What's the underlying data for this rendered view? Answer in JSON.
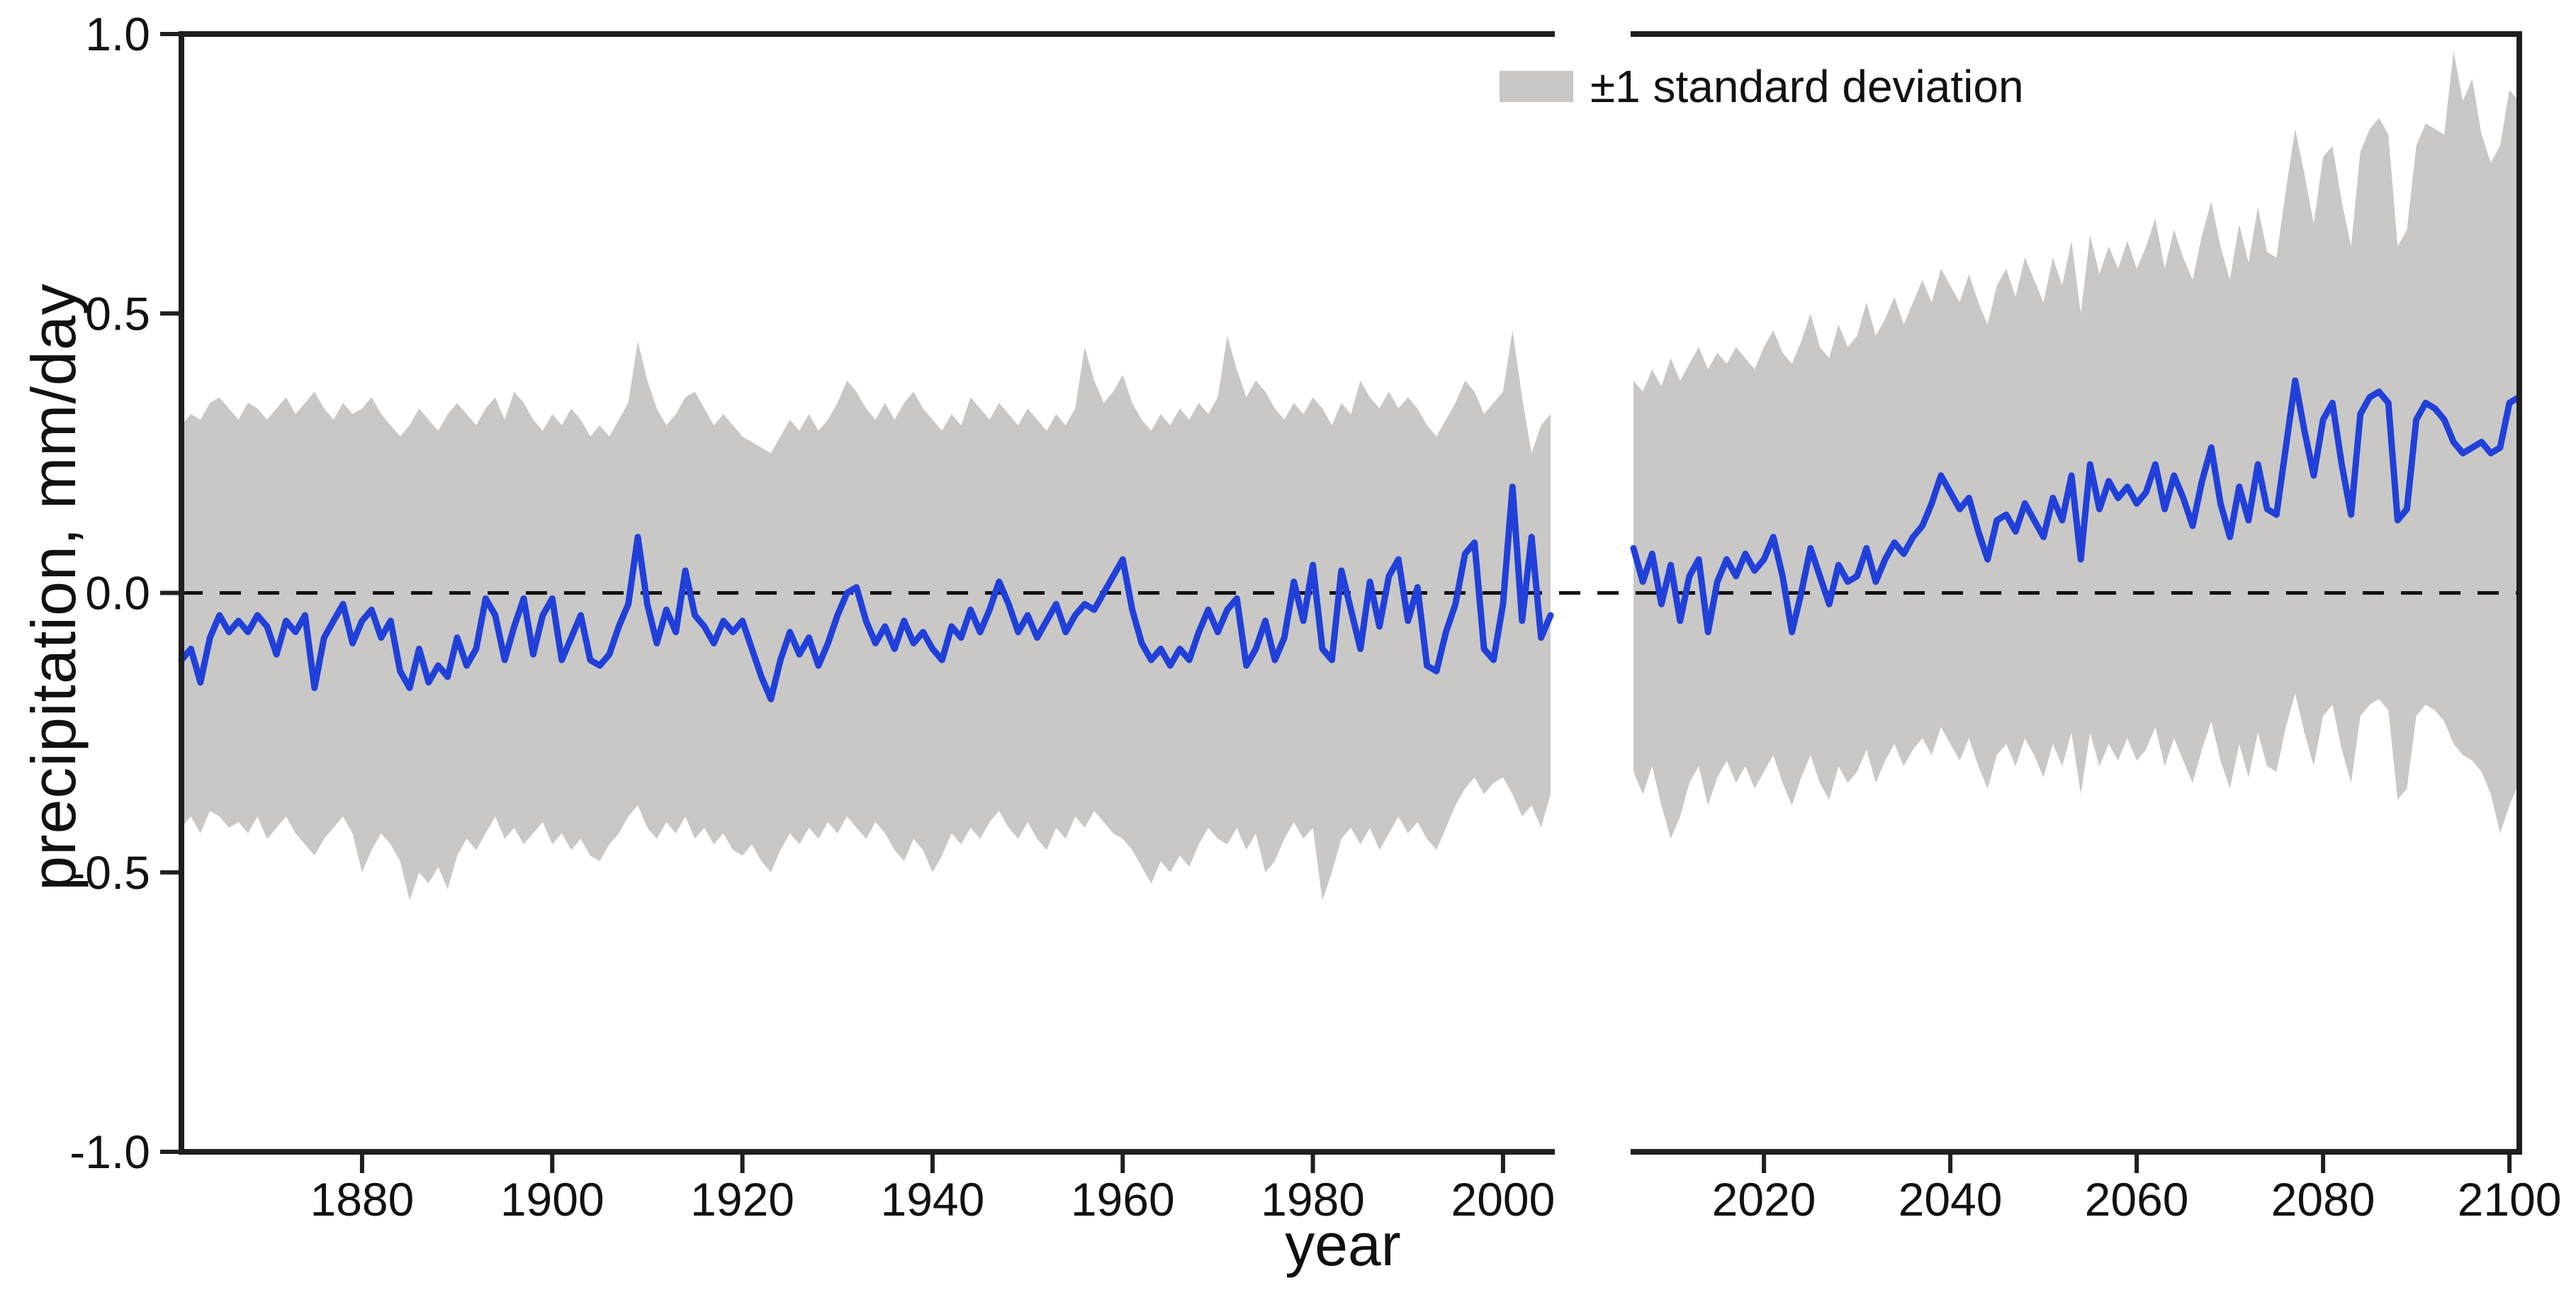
{
  "chart_data": {
    "type": "line",
    "title": "",
    "xlabel": "year",
    "ylabel": "precipitation, mm/day",
    "ylim": [
      -1.0,
      1.0
    ],
    "grid": false,
    "zero_line": true,
    "band_label": "±1 standard deviation",
    "legend_position": "top-right-of-left-panel",
    "layout": {
      "broken_x_axis": true,
      "panel_gap_years": "2005-2006"
    },
    "colors": {
      "mean_line": "#2140d9",
      "band": "#c9c8c6",
      "axis": "#1f1f1f",
      "zero_line": "#111111"
    },
    "y_ticks": {
      "values": [
        1.0,
        0.5,
        0.0,
        -0.5,
        -1.0
      ],
      "labels": [
        "1.0",
        "0.5",
        "0.0",
        "-0.5",
        "-1.0"
      ]
    },
    "panels": [
      {
        "name": "historical",
        "x_range": [
          1861,
          2005
        ],
        "x_ticks": [
          1880,
          1900,
          1920,
          1940,
          1960,
          1980,
          2000
        ],
        "year_start": 1861,
        "series": {
          "mean": [
            -0.12,
            -0.1,
            -0.16,
            -0.08,
            -0.04,
            -0.07,
            -0.05,
            -0.07,
            -0.04,
            -0.06,
            -0.11,
            -0.05,
            -0.07,
            -0.04,
            -0.17,
            -0.08,
            -0.05,
            -0.02,
            -0.09,
            -0.05,
            -0.03,
            -0.08,
            -0.05,
            -0.14,
            -0.17,
            -0.1,
            -0.16,
            -0.13,
            -0.15,
            -0.08,
            -0.13,
            -0.1,
            -0.01,
            -0.04,
            -0.12,
            -0.06,
            -0.01,
            -0.11,
            -0.04,
            -0.01,
            -0.12,
            -0.08,
            -0.04,
            -0.12,
            -0.13,
            -0.11,
            -0.06,
            -0.02,
            0.1,
            -0.02,
            -0.09,
            -0.03,
            -0.07,
            0.04,
            -0.04,
            -0.06,
            -0.09,
            -0.05,
            -0.07,
            -0.05,
            -0.1,
            -0.15,
            -0.19,
            -0.12,
            -0.07,
            -0.11,
            -0.08,
            -0.13,
            -0.09,
            -0.04,
            0.0,
            0.01,
            -0.05,
            -0.09,
            -0.06,
            -0.1,
            -0.05,
            -0.09,
            -0.07,
            -0.1,
            -0.12,
            -0.06,
            -0.08,
            -0.03,
            -0.07,
            -0.03,
            0.02,
            -0.02,
            -0.07,
            -0.04,
            -0.08,
            -0.05,
            -0.02,
            -0.07,
            -0.04,
            -0.02,
            -0.03,
            0.0,
            0.03,
            0.06,
            -0.03,
            -0.09,
            -0.12,
            -0.1,
            -0.13,
            -0.1,
            -0.12,
            -0.07,
            -0.03,
            -0.07,
            -0.03,
            -0.01,
            -0.13,
            -0.1,
            -0.05,
            -0.12,
            -0.08,
            0.02,
            -0.05,
            0.05,
            -0.1,
            -0.12,
            0.04,
            -0.03,
            -0.1,
            0.02,
            -0.06,
            0.03,
            0.06,
            -0.05,
            0.01,
            -0.13,
            -0.14,
            -0.07,
            -0.02,
            0.07,
            0.09,
            -0.1,
            -0.12,
            -0.02,
            0.19,
            -0.05,
            0.1,
            -0.08,
            -0.04
          ],
          "upper": [
            0.3,
            0.32,
            0.31,
            0.34,
            0.35,
            0.33,
            0.31,
            0.34,
            0.33,
            0.31,
            0.33,
            0.35,
            0.32,
            0.34,
            0.36,
            0.33,
            0.31,
            0.34,
            0.32,
            0.33,
            0.35,
            0.32,
            0.3,
            0.28,
            0.3,
            0.33,
            0.31,
            0.29,
            0.32,
            0.34,
            0.32,
            0.3,
            0.33,
            0.35,
            0.31,
            0.36,
            0.34,
            0.31,
            0.29,
            0.32,
            0.3,
            0.33,
            0.31,
            0.28,
            0.3,
            0.28,
            0.31,
            0.34,
            0.45,
            0.38,
            0.33,
            0.3,
            0.32,
            0.35,
            0.36,
            0.33,
            0.3,
            0.32,
            0.3,
            0.28,
            0.27,
            0.26,
            0.25,
            0.28,
            0.31,
            0.29,
            0.32,
            0.29,
            0.31,
            0.34,
            0.38,
            0.36,
            0.33,
            0.31,
            0.34,
            0.31,
            0.34,
            0.36,
            0.33,
            0.31,
            0.29,
            0.32,
            0.3,
            0.35,
            0.33,
            0.31,
            0.34,
            0.32,
            0.3,
            0.33,
            0.31,
            0.29,
            0.32,
            0.3,
            0.33,
            0.44,
            0.38,
            0.34,
            0.36,
            0.39,
            0.34,
            0.31,
            0.29,
            0.32,
            0.3,
            0.33,
            0.31,
            0.34,
            0.32,
            0.35,
            0.46,
            0.4,
            0.35,
            0.38,
            0.36,
            0.33,
            0.31,
            0.34,
            0.32,
            0.35,
            0.33,
            0.3,
            0.34,
            0.32,
            0.38,
            0.35,
            0.33,
            0.36,
            0.33,
            0.35,
            0.33,
            0.3,
            0.28,
            0.31,
            0.34,
            0.38,
            0.36,
            0.32,
            0.34,
            0.36,
            0.47,
            0.35,
            0.25,
            0.3,
            0.32
          ],
          "lower": [
            -0.42,
            -0.4,
            -0.43,
            -0.39,
            -0.4,
            -0.42,
            -0.41,
            -0.43,
            -0.4,
            -0.44,
            -0.42,
            -0.4,
            -0.43,
            -0.45,
            -0.47,
            -0.44,
            -0.42,
            -0.4,
            -0.43,
            -0.5,
            -0.46,
            -0.43,
            -0.45,
            -0.48,
            -0.55,
            -0.5,
            -0.52,
            -0.49,
            -0.53,
            -0.47,
            -0.44,
            -0.46,
            -0.43,
            -0.4,
            -0.44,
            -0.42,
            -0.45,
            -0.43,
            -0.41,
            -0.45,
            -0.43,
            -0.46,
            -0.44,
            -0.47,
            -0.48,
            -0.45,
            -0.43,
            -0.4,
            -0.38,
            -0.42,
            -0.44,
            -0.41,
            -0.43,
            -0.4,
            -0.44,
            -0.42,
            -0.45,
            -0.43,
            -0.46,
            -0.47,
            -0.45,
            -0.48,
            -0.5,
            -0.46,
            -0.43,
            -0.45,
            -0.42,
            -0.44,
            -0.41,
            -0.43,
            -0.4,
            -0.42,
            -0.44,
            -0.41,
            -0.43,
            -0.46,
            -0.48,
            -0.44,
            -0.46,
            -0.5,
            -0.47,
            -0.43,
            -0.45,
            -0.42,
            -0.44,
            -0.41,
            -0.39,
            -0.42,
            -0.44,
            -0.41,
            -0.44,
            -0.46,
            -0.42,
            -0.44,
            -0.4,
            -0.42,
            -0.39,
            -0.41,
            -0.43,
            -0.44,
            -0.46,
            -0.49,
            -0.52,
            -0.48,
            -0.5,
            -0.47,
            -0.49,
            -0.45,
            -0.42,
            -0.44,
            -0.45,
            -0.42,
            -0.46,
            -0.43,
            -0.5,
            -0.48,
            -0.44,
            -0.41,
            -0.44,
            -0.42,
            -0.55,
            -0.5,
            -0.44,
            -0.42,
            -0.45,
            -0.42,
            -0.46,
            -0.43,
            -0.4,
            -0.43,
            -0.41,
            -0.44,
            -0.46,
            -0.42,
            -0.38,
            -0.35,
            -0.33,
            -0.36,
            -0.34,
            -0.33,
            -0.36,
            -0.4,
            -0.38,
            -0.42,
            -0.36
          ]
        }
      },
      {
        "name": "projection",
        "x_range": [
          2006,
          2101
        ],
        "x_ticks": [
          2020,
          2040,
          2060,
          2080,
          2100
        ],
        "year_start": 2006,
        "series": {
          "mean": [
            0.08,
            0.02,
            0.07,
            -0.02,
            0.05,
            -0.05,
            0.03,
            0.06,
            -0.07,
            0.02,
            0.06,
            0.03,
            0.07,
            0.04,
            0.06,
            0.1,
            0.03,
            -0.07,
            0.0,
            0.08,
            0.03,
            -0.02,
            0.05,
            0.02,
            0.03,
            0.08,
            0.02,
            0.06,
            0.09,
            0.07,
            0.1,
            0.12,
            0.16,
            0.21,
            0.18,
            0.15,
            0.17,
            0.11,
            0.06,
            0.13,
            0.14,
            0.11,
            0.16,
            0.13,
            0.1,
            0.17,
            0.13,
            0.21,
            0.06,
            0.23,
            0.15,
            0.2,
            0.17,
            0.19,
            0.16,
            0.18,
            0.23,
            0.15,
            0.21,
            0.17,
            0.12,
            0.2,
            0.26,
            0.16,
            0.1,
            0.19,
            0.13,
            0.23,
            0.15,
            0.14,
            0.26,
            0.38,
            0.29,
            0.21,
            0.31,
            0.34,
            0.23,
            0.14,
            0.32,
            0.35,
            0.36,
            0.34,
            0.13,
            0.15,
            0.31,
            0.34,
            0.33,
            0.31,
            0.27,
            0.25,
            0.26,
            0.27,
            0.25,
            0.26,
            0.34,
            0.35
          ],
          "upper": [
            0.38,
            0.36,
            0.4,
            0.37,
            0.42,
            0.38,
            0.41,
            0.44,
            0.4,
            0.43,
            0.41,
            0.44,
            0.42,
            0.4,
            0.44,
            0.47,
            0.43,
            0.41,
            0.45,
            0.5,
            0.44,
            0.42,
            0.48,
            0.44,
            0.46,
            0.52,
            0.46,
            0.49,
            0.53,
            0.48,
            0.52,
            0.56,
            0.52,
            0.58,
            0.55,
            0.52,
            0.57,
            0.52,
            0.48,
            0.55,
            0.58,
            0.53,
            0.6,
            0.56,
            0.52,
            0.6,
            0.55,
            0.63,
            0.5,
            0.64,
            0.57,
            0.62,
            0.58,
            0.63,
            0.58,
            0.62,
            0.67,
            0.58,
            0.65,
            0.6,
            0.56,
            0.64,
            0.7,
            0.62,
            0.56,
            0.66,
            0.59,
            0.69,
            0.61,
            0.6,
            0.72,
            0.83,
            0.75,
            0.66,
            0.78,
            0.8,
            0.7,
            0.62,
            0.79,
            0.83,
            0.85,
            0.82,
            0.62,
            0.65,
            0.8,
            0.84,
            0.83,
            0.82,
            0.97,
            0.88,
            0.92,
            0.82,
            0.77,
            0.8,
            0.9,
            0.88
          ],
          "lower": [
            -0.32,
            -0.36,
            -0.31,
            -0.38,
            -0.44,
            -0.4,
            -0.34,
            -0.31,
            -0.38,
            -0.33,
            -0.3,
            -0.34,
            -0.31,
            -0.35,
            -0.32,
            -0.29,
            -0.34,
            -0.38,
            -0.33,
            -0.29,
            -0.34,
            -0.37,
            -0.31,
            -0.34,
            -0.32,
            -0.28,
            -0.34,
            -0.3,
            -0.27,
            -0.31,
            -0.28,
            -0.26,
            -0.29,
            -0.24,
            -0.27,
            -0.3,
            -0.26,
            -0.31,
            -0.35,
            -0.29,
            -0.27,
            -0.31,
            -0.26,
            -0.29,
            -0.33,
            -0.27,
            -0.31,
            -0.25,
            -0.36,
            -0.25,
            -0.31,
            -0.27,
            -0.3,
            -0.26,
            -0.3,
            -0.28,
            -0.24,
            -0.31,
            -0.26,
            -0.3,
            -0.34,
            -0.28,
            -0.23,
            -0.3,
            -0.35,
            -0.27,
            -0.33,
            -0.25,
            -0.31,
            -0.32,
            -0.24,
            -0.18,
            -0.25,
            -0.31,
            -0.22,
            -0.2,
            -0.28,
            -0.34,
            -0.22,
            -0.2,
            -0.19,
            -0.21,
            -0.37,
            -0.35,
            -0.22,
            -0.2,
            -0.21,
            -0.23,
            -0.27,
            -0.29,
            -0.3,
            -0.32,
            -0.36,
            -0.43,
            -0.38,
            -0.34
          ]
        }
      }
    ]
  }
}
